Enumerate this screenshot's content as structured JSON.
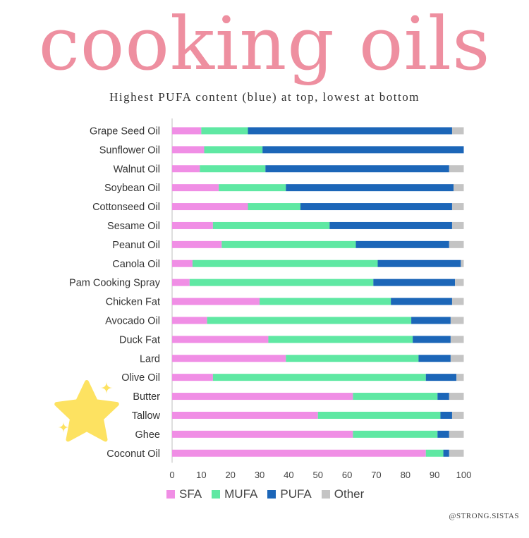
{
  "title": "cooking oils",
  "subtitle": "Highest PUFA content (blue) at top, lowest at bottom",
  "credit": "@STRONG.SISTAS",
  "colors": {
    "SFA": "#f08ee5",
    "MUFA": "#5fe8a3",
    "PUFA": "#1c66b8",
    "Other": "#c4c4c4",
    "star": "#fde261"
  },
  "chart_data": {
    "type": "bar",
    "orientation": "horizontal",
    "stacked": true,
    "categories": [
      "Grape Seed Oil",
      "Sunflower Oil",
      "Walnut Oil",
      "Soybean Oil",
      "Cottonseed Oil",
      "Sesame Oil",
      "Peanut Oil",
      "Canola Oil",
      "Pam Cooking Spray",
      "Chicken Fat",
      "Avocado Oil",
      "Duck Fat",
      "Lard",
      "Olive Oil",
      "Butter",
      "Tallow",
      "Ghee",
      "Coconut Oil"
    ],
    "series": [
      {
        "name": "SFA",
        "values": [
          10,
          11,
          9.5,
          16,
          26,
          14,
          17,
          7,
          6,
          30,
          12,
          33,
          39,
          14,
          62,
          50,
          62,
          87
        ]
      },
      {
        "name": "MUFA",
        "values": [
          16,
          20,
          22.5,
          23,
          18,
          40,
          46,
          63.5,
          63,
          45,
          70,
          49.5,
          45.5,
          73,
          29,
          42,
          29,
          6
        ]
      },
      {
        "name": "PUFA",
        "values": [
          70,
          69,
          63,
          57.5,
          52,
          42,
          32,
          28.5,
          28,
          21,
          13.5,
          13,
          11,
          10.5,
          4,
          4,
          4,
          2
        ]
      },
      {
        "name": "Other",
        "values": [
          4,
          0,
          5,
          3.5,
          4,
          4,
          5,
          1,
          3,
          4,
          4.5,
          4.5,
          4.5,
          2.5,
          5,
          4,
          5,
          5
        ]
      }
    ],
    "xlim": [
      0,
      100
    ],
    "xticks": [
      "0",
      "10",
      "20",
      "30",
      "40",
      "50",
      "60",
      "70",
      "80",
      "90",
      "100"
    ],
    "legend": [
      "SFA",
      "MUFA",
      "PUFA",
      "Other"
    ],
    "legend_position": "bottom"
  }
}
